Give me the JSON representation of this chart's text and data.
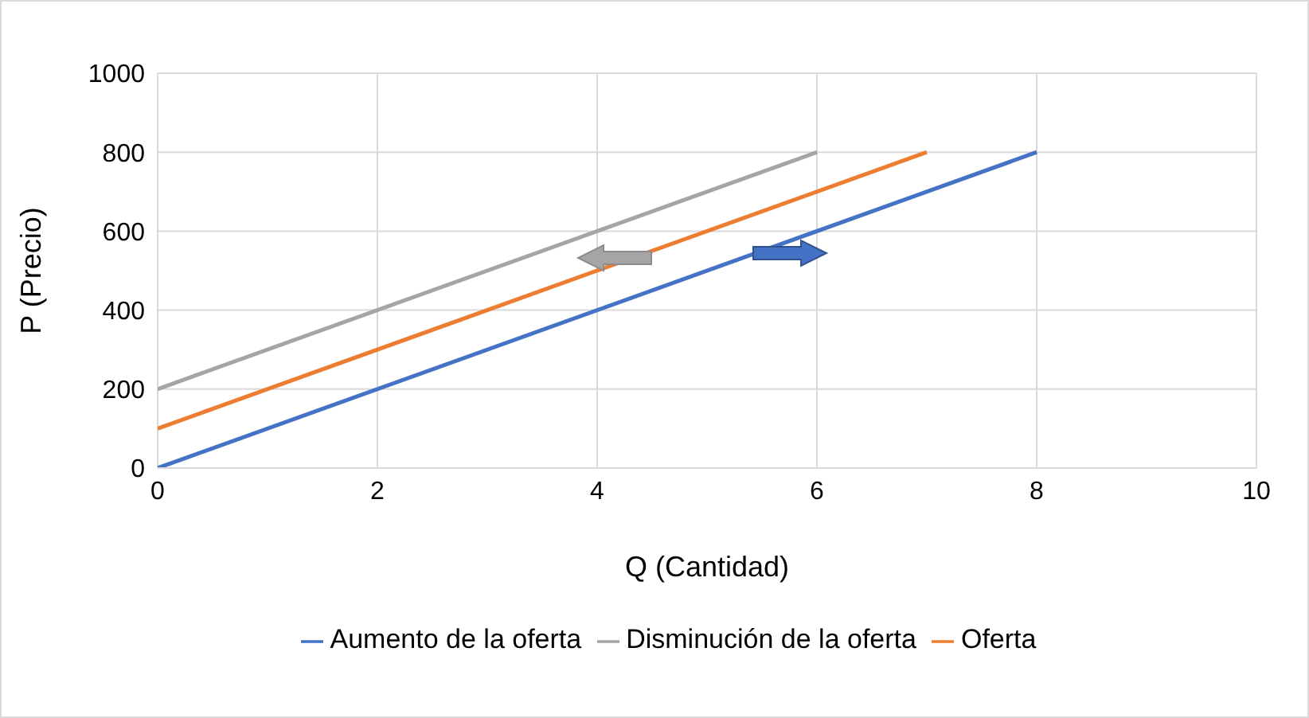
{
  "chart_data": {
    "type": "line",
    "xlabel": "Q (Cantidad)",
    "ylabel": "P (Precio)",
    "xlim": [
      0,
      10
    ],
    "xticks": [
      0,
      2,
      4,
      6,
      8,
      10
    ],
    "ylim": [
      0,
      1000
    ],
    "yticks": [
      0,
      200,
      400,
      600,
      800,
      1000
    ],
    "grid": true,
    "legend": "bottom",
    "marker": "none",
    "line_style": "solid",
    "series": [
      {
        "name": "Aumento de la oferta",
        "color": "#4472c4",
        "x": [
          0,
          8
        ],
        "values": [
          0,
          800
        ]
      },
      {
        "name": "Oferta",
        "color": "#ed7d31",
        "x": [
          0,
          7
        ],
        "values": [
          100,
          800
        ]
      },
      {
        "name": "Disminución de la oferta",
        "color": "#a5a5a5",
        "x": [
          0,
          6
        ],
        "values": [
          200,
          800
        ]
      }
    ]
  }
}
